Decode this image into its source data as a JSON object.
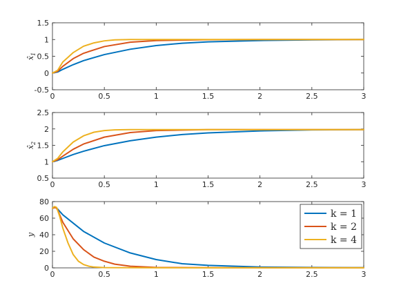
{
  "chart_data": [
    {
      "type": "line",
      "ylabel": "x̂",
      "ylabel_sub": "1",
      "xlim": [
        0,
        3
      ],
      "ylim": [
        -0.5,
        1.5
      ],
      "xticks": [
        "0",
        "0.5",
        "1",
        "1.5",
        "2",
        "2.5",
        "3"
      ],
      "yticks": [
        "-0.5",
        "0",
        "0.5",
        "1",
        "1.5"
      ],
      "series": [
        {
          "x": [
            0,
            0.05,
            0.1,
            0.2,
            0.3,
            0.5,
            0.75,
            1,
            1.25,
            1.5,
            2,
            2.5,
            3
          ],
          "values": [
            0,
            0.03,
            0.11,
            0.25,
            0.37,
            0.55,
            0.71,
            0.82,
            0.89,
            0.93,
            0.97,
            0.99,
            1.0
          ]
        },
        {
          "x": [
            0,
            0.05,
            0.1,
            0.2,
            0.3,
            0.5,
            0.75,
            1,
            1.5,
            2,
            3
          ],
          "values": [
            0,
            0.05,
            0.2,
            0.43,
            0.59,
            0.79,
            0.92,
            0.97,
            0.995,
            1.0,
            1.0
          ]
        },
        {
          "x": [
            0,
            0.05,
            0.1,
            0.15,
            0.2,
            0.3,
            0.4,
            0.5,
            0.6,
            0.75,
            1,
            1.5,
            2,
            3
          ],
          "values": [
            0,
            0.08,
            0.33,
            0.47,
            0.61,
            0.8,
            0.9,
            0.96,
            0.99,
            1.0,
            1.0,
            1.0,
            1.0,
            1.0
          ]
        }
      ]
    },
    {
      "type": "line",
      "ylabel": "x̂",
      "ylabel_sub": "2",
      "xlim": [
        0,
        3
      ],
      "ylim": [
        0.5,
        2.5
      ],
      "xticks": [
        "0",
        "0.5",
        "1",
        "1.5",
        "2",
        "2.5",
        "3"
      ],
      "yticks": [
        "0.5",
        "1",
        "1.5",
        "2",
        "2.5"
      ],
      "series": [
        {
          "x": [
            0,
            0.05,
            0.1,
            0.2,
            0.3,
            0.5,
            0.75,
            1,
            1.25,
            1.5,
            2,
            2.5,
            3
          ],
          "values": [
            1.0,
            1.04,
            1.1,
            1.22,
            1.32,
            1.49,
            1.64,
            1.75,
            1.83,
            1.88,
            1.94,
            1.97,
            1.98
          ]
        },
        {
          "x": [
            0,
            0.05,
            0.1,
            0.2,
            0.3,
            0.5,
            0.75,
            1,
            1.5,
            2,
            3
          ],
          "values": [
            1.0,
            1.06,
            1.17,
            1.38,
            1.54,
            1.75,
            1.89,
            1.95,
            1.98,
            1.98,
            1.98
          ]
        },
        {
          "x": [
            0,
            0.05,
            0.1,
            0.2,
            0.3,
            0.4,
            0.5,
            0.6,
            0.75,
            1,
            1.5,
            2,
            3
          ],
          "values": [
            1.0,
            1.1,
            1.3,
            1.6,
            1.79,
            1.9,
            1.95,
            1.97,
            1.98,
            1.98,
            1.98,
            1.98,
            1.98
          ]
        }
      ]
    },
    {
      "type": "line",
      "ylabel": "y",
      "xlim": [
        0,
        3
      ],
      "ylim": [
        0,
        80
      ],
      "xticks": [
        "0",
        "0.5",
        "1",
        "1.5",
        "2",
        "2.5",
        "3"
      ],
      "yticks": [
        "0",
        "20",
        "40",
        "60",
        "80"
      ],
      "legend_position": "top-right",
      "series": [
        {
          "name": "k = 1",
          "x": [
            0,
            0.03,
            0.05,
            0.1,
            0.2,
            0.3,
            0.5,
            0.75,
            1,
            1.25,
            1.5,
            2,
            2.5,
            3
          ],
          "values": [
            72,
            73,
            71,
            64,
            54,
            44,
            30,
            18,
            10,
            5,
            3,
            1,
            0.5,
            0.3
          ]
        },
        {
          "name": "k = 2",
          "x": [
            0,
            0.03,
            0.05,
            0.1,
            0.2,
            0.3,
            0.4,
            0.5,
            0.6,
            0.75,
            1,
            1.5,
            2,
            3
          ],
          "values": [
            72,
            73,
            70,
            55,
            35,
            22,
            13,
            8,
            4.5,
            2,
            0.5,
            0.2,
            0.1,
            0.1
          ]
        },
        {
          "name": "k = 4",
          "x": [
            0,
            0.02,
            0.04,
            0.07,
            0.1,
            0.15,
            0.2,
            0.25,
            0.3,
            0.35,
            0.4,
            0.5,
            1,
            2,
            3
          ],
          "values": [
            72,
            74,
            73,
            62,
            48,
            30,
            16,
            8,
            4,
            2,
            1,
            0.3,
            0.1,
            0.1,
            0.1
          ]
        }
      ]
    }
  ],
  "colors": [
    "#0072BD",
    "#D95319",
    "#EDB120"
  ]
}
